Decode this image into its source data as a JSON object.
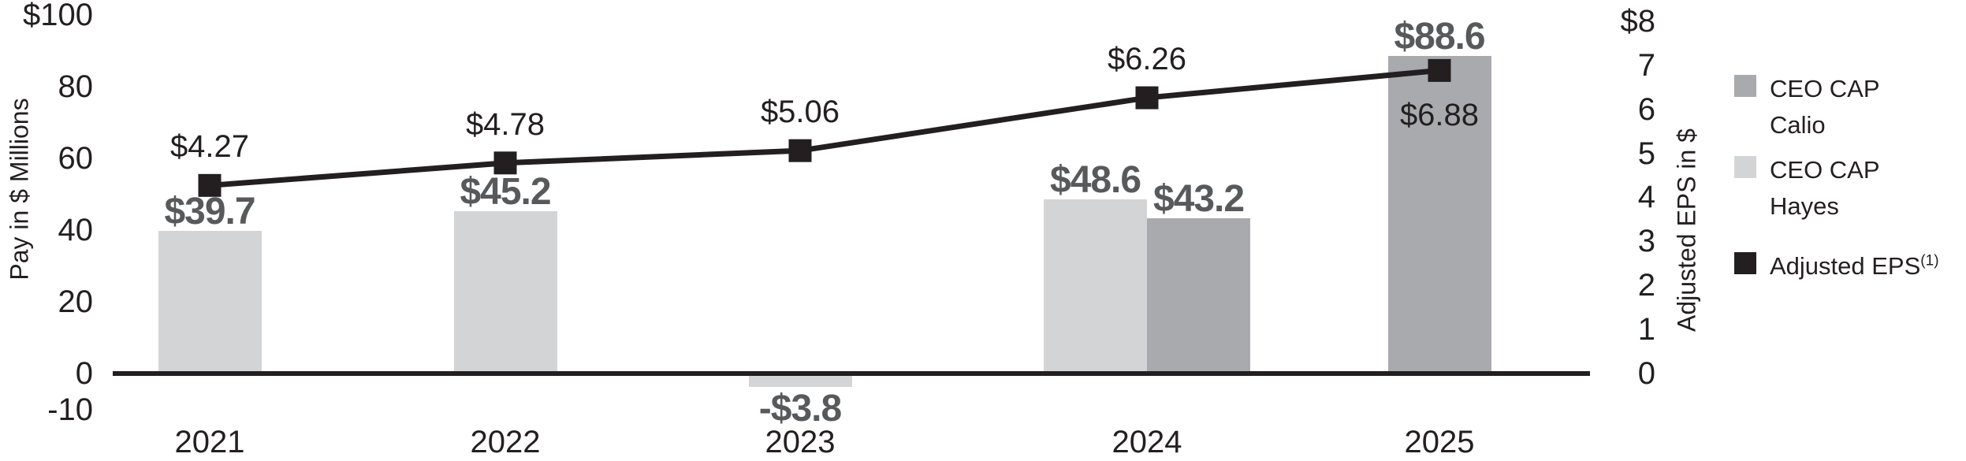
{
  "chart_data": {
    "type": "bar",
    "subtype": "clustered-bars-with-overlay-line",
    "categories": [
      "2021",
      "2022",
      "2023",
      "2024",
      "2025"
    ],
    "series": [
      {
        "name": "CEO CAP Hayes",
        "color": "#d3d4d6",
        "values": [
          39.7,
          45.2,
          -3.8,
          48.6,
          null
        ],
        "labels": [
          "$39.7",
          "$45.2",
          "-$3.8",
          "$48.6",
          null
        ]
      },
      {
        "name": "CEO CAP Calio",
        "color": "#a8aaad",
        "values": [
          null,
          null,
          null,
          43.2,
          88.6
        ],
        "labels": [
          null,
          null,
          null,
          "$43.2",
          "$88.6"
        ]
      }
    ],
    "line": {
      "name": "Adjusted EPS",
      "superscript": "(1)",
      "color": "#231f20",
      "axis": "right",
      "values": [
        4.27,
        4.78,
        5.06,
        6.26,
        6.88
      ],
      "labels": [
        "$4.27",
        "$4.78",
        "$5.06",
        "$6.26",
        "$6.88"
      ],
      "label_positions": [
        "above",
        "above",
        "above",
        "above",
        "below"
      ]
    },
    "ylabel_left": "Pay in $ Millions",
    "ylabel_right": "Adjusted EPS in $",
    "left_axis": {
      "ticks": [
        "$100",
        "80",
        "60",
        "40",
        "20",
        "0",
        "-10"
      ],
      "values": [
        100,
        80,
        60,
        40,
        20,
        0,
        -10
      ],
      "range": [
        -10,
        100
      ]
    },
    "right_axis": {
      "ticks": [
        "$8",
        "7",
        "6",
        "5",
        "4",
        "3",
        "2",
        "1",
        "0"
      ],
      "values": [
        8,
        7,
        6,
        5,
        4,
        3,
        2,
        1,
        0
      ],
      "range": [
        0,
        8
      ]
    },
    "grid": false,
    "legend_position": "right",
    "legend_entries": [
      {
        "label": "CEO CAP Calio",
        "color": "#a8aaad"
      },
      {
        "label": "CEO CAP Hayes",
        "color": "#d3d4d6"
      },
      {
        "label": "Adjusted EPS",
        "superscript": "(1)",
        "color": "#231f20"
      }
    ],
    "colors": {
      "axis_and_text": "#231f20",
      "bar_value_labels": "#58595b",
      "hayes_bar": "#d3d4d6",
      "calio_bar": "#a8aaad",
      "eps_line": "#231f20"
    }
  }
}
